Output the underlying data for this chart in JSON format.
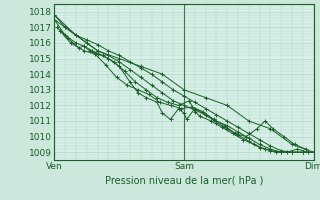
{
  "title": "",
  "xlabel": "Pression niveau de la mer( hPa )",
  "ylabel": "",
  "bg_color": "#cce8dc",
  "plot_bg_color": "#d8f0e8",
  "grid_color": "#b0d4c4",
  "line_color": "#1a5e28",
  "ylim": [
    1008.5,
    1018.5
  ],
  "xlim": [
    0,
    48
  ],
  "yticks": [
    1009,
    1010,
    1011,
    1012,
    1013,
    1014,
    1015,
    1016,
    1017,
    1018
  ],
  "xtick_positions": [
    0,
    24,
    48
  ],
  "xtick_labels": [
    "Ven",
    "Sam",
    "Dim"
  ],
  "series": [
    [
      0.0,
      1017.5,
      2.0,
      1017.0,
      4.0,
      1016.5,
      6.0,
      1016.2,
      8.0,
      1015.9,
      10.0,
      1015.5,
      12.0,
      1015.2,
      14.0,
      1014.8,
      16.0,
      1014.4,
      18.0,
      1014.0,
      20.0,
      1013.5,
      22.0,
      1013.0,
      24.0,
      1012.6,
      26.0,
      1012.2,
      28.0,
      1011.8,
      30.0,
      1011.4,
      32.0,
      1011.0,
      34.0,
      1010.6,
      36.0,
      1010.2,
      38.0,
      1009.8,
      40.0,
      1009.4,
      42.0,
      1009.1,
      44.0,
      1009.0,
      46.0,
      1009.0,
      48.0,
      1009.0
    ],
    [
      0.0,
      1017.8,
      2.0,
      1017.0,
      4.0,
      1016.5,
      6.0,
      1016.0,
      8.0,
      1015.5,
      10.0,
      1015.2,
      12.0,
      1014.8,
      14.0,
      1014.3,
      16.0,
      1013.8,
      18.0,
      1013.3,
      20.0,
      1012.8,
      22.0,
      1012.3,
      24.0,
      1012.0,
      26.0,
      1011.7,
      28.0,
      1011.4,
      30.0,
      1011.0,
      32.0,
      1010.7,
      34.0,
      1010.3,
      36.0,
      1009.9,
      38.0,
      1009.5,
      40.0,
      1009.2,
      42.0,
      1009.0,
      44.0,
      1009.0,
      46.0,
      1009.0,
      48.0,
      1009.0
    ],
    [
      0.5,
      1017.0,
      2.5,
      1016.3,
      4.5,
      1015.7,
      5.5,
      1015.8,
      6.5,
      1015.5,
      8.0,
      1015.3,
      10.0,
      1015.0,
      12.0,
      1014.5,
      14.0,
      1013.5,
      15.5,
      1012.8,
      17.0,
      1012.5,
      19.0,
      1012.2,
      20.0,
      1011.5,
      21.5,
      1011.1,
      23.0,
      1011.8,
      24.0,
      1011.5,
      24.5,
      1011.1,
      26.0,
      1011.8,
      28.0,
      1011.4,
      30.0,
      1010.9,
      32.0,
      1010.5,
      34.0,
      1010.1,
      36.0,
      1009.7,
      38.0,
      1009.3,
      40.0,
      1009.1,
      42.0,
      1009.0,
      44.0,
      1009.0,
      46.0,
      1009.0,
      48.0,
      1009.0
    ],
    [
      0.0,
      1017.5,
      2.0,
      1016.5,
      4.0,
      1016.0,
      5.5,
      1015.8,
      7.0,
      1015.5,
      9.0,
      1015.2,
      11.0,
      1014.8,
      13.0,
      1014.2,
      15.0,
      1013.5,
      17.0,
      1013.0,
      19.0,
      1012.5,
      21.0,
      1012.2,
      23.0,
      1012.0,
      25.0,
      1012.3,
      26.0,
      1011.6,
      27.0,
      1011.3,
      29.0,
      1011.0,
      31.0,
      1010.6,
      33.0,
      1010.2,
      35.0,
      1009.8,
      37.0,
      1009.5,
      39.0,
      1009.2,
      41.0,
      1009.0,
      43.0,
      1009.0,
      45.0,
      1009.2,
      47.0,
      1009.0
    ],
    [
      1.0,
      1016.8,
      3.0,
      1016.0,
      5.5,
      1015.5,
      7.5,
      1015.3,
      9.5,
      1014.6,
      11.5,
      1013.8,
      13.5,
      1013.3,
      15.5,
      1013.0,
      17.5,
      1012.7,
      19.5,
      1012.2,
      21.5,
      1012.0,
      23.5,
      1011.8,
      25.5,
      1011.9,
      27.5,
      1011.6,
      29.5,
      1011.1,
      31.5,
      1010.7,
      33.5,
      1010.2,
      35.5,
      1010.0,
      37.5,
      1010.5,
      39.0,
      1011.0,
      40.5,
      1010.5,
      42.5,
      1010.0,
      44.5,
      1009.5,
      46.5,
      1009.2
    ],
    [
      0.0,
      1017.8,
      4.0,
      1016.5,
      8.0,
      1015.5,
      12.0,
      1015.0,
      16.0,
      1014.5,
      20.0,
      1014.0,
      24.0,
      1013.0,
      28.0,
      1012.5,
      32.0,
      1012.0,
      36.0,
      1011.0,
      40.0,
      1010.5,
      44.0,
      1009.5,
      48.0,
      1009.0
    ]
  ]
}
